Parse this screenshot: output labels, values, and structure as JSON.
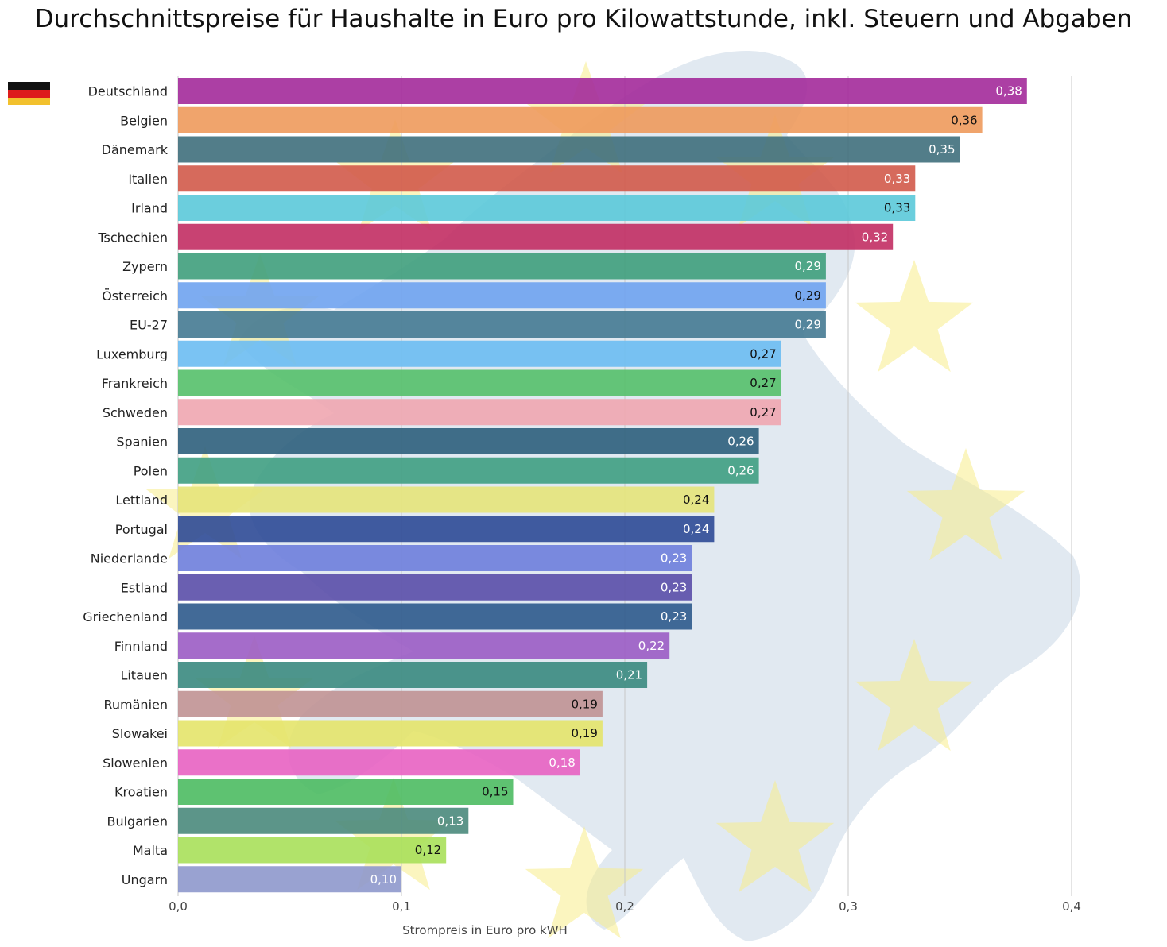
{
  "chart_data": {
    "type": "bar",
    "orientation": "horizontal",
    "title": "Durchschnittspreise für Haushalte in Euro pro Kilowattstunde, inkl. Steuern und Abgaben",
    "xlabel": "Strompreis in Euro pro kWH",
    "ylabel": "",
    "xlim": [
      0,
      0.4
    ],
    "xticks": [
      "0,0",
      "0,1",
      "0,2",
      "0,3",
      "0,4"
    ],
    "xtick_values": [
      0,
      0.1,
      0.2,
      0.3,
      0.4
    ],
    "grid": "vertical",
    "highlight_flag": "germany-flag",
    "categories": [
      "Deutschland",
      "Belgien",
      "Dänemark",
      "Italien",
      "Irland",
      "Tschechien",
      "Zypern",
      "Österreich",
      "EU-27",
      "Luxemburg",
      "Frankreich",
      "Schweden",
      "Spanien",
      "Polen",
      "Lettland",
      "Portugal",
      "Niederlande",
      "Estland",
      "Griechenland",
      "Finnland",
      "Litauen",
      "Rumänien",
      "Slowakei",
      "Slowenien",
      "Kroatien",
      "Bulgarien",
      "Malta",
      "Ungarn"
    ],
    "values": [
      0.38,
      0.36,
      0.35,
      0.33,
      0.33,
      0.32,
      0.29,
      0.29,
      0.29,
      0.27,
      0.27,
      0.27,
      0.26,
      0.26,
      0.24,
      0.24,
      0.23,
      0.23,
      0.23,
      0.22,
      0.21,
      0.19,
      0.19,
      0.18,
      0.15,
      0.13,
      0.12,
      0.1
    ],
    "value_labels": [
      "0,38",
      "0,36",
      "0,35",
      "0,33",
      "0,33",
      "0,32",
      "0,29",
      "0,29",
      "0,29",
      "0,27",
      "0,27",
      "0,27",
      "0,26",
      "0,26",
      "0,24",
      "0,24",
      "0,23",
      "0,23",
      "0,23",
      "0,22",
      "0,21",
      "0,19",
      "0,19",
      "0,18",
      "0,15",
      "0,13",
      "0,12",
      "0,10"
    ],
    "colors": [
      "#a32a9a",
      "#ee9a5c",
      "#3f6f7c",
      "#d25a4a",
      "#5bc9d9",
      "#c22e63",
      "#3f9e7c",
      "#6fa3f0",
      "#457a92",
      "#6cbcf2",
      "#55c06a",
      "#f0a6b0",
      "#2e5f7c",
      "#3f9e82",
      "#e6e47a",
      "#2d4a96",
      "#6e7edc",
      "#5a4ea8",
      "#2e5a8c",
      "#9b5cc4",
      "#3a8a80",
      "#c09294",
      "#e4e46a",
      "#e862c2",
      "#4cbb62",
      "#4a8a7c",
      "#a8e05a",
      "#8e98cc"
    ],
    "label_colors": [
      "#ffffff",
      "#111111",
      "#ffffff",
      "#ffffff",
      "#111111",
      "#ffffff",
      "#ffffff",
      "#111111",
      "#ffffff",
      "#111111",
      "#111111",
      "#111111",
      "#ffffff",
      "#ffffff",
      "#111111",
      "#ffffff",
      "#ffffff",
      "#ffffff",
      "#ffffff",
      "#ffffff",
      "#ffffff",
      "#111111",
      "#111111",
      "#ffffff",
      "#111111",
      "#ffffff",
      "#111111",
      "#ffffff"
    ]
  }
}
